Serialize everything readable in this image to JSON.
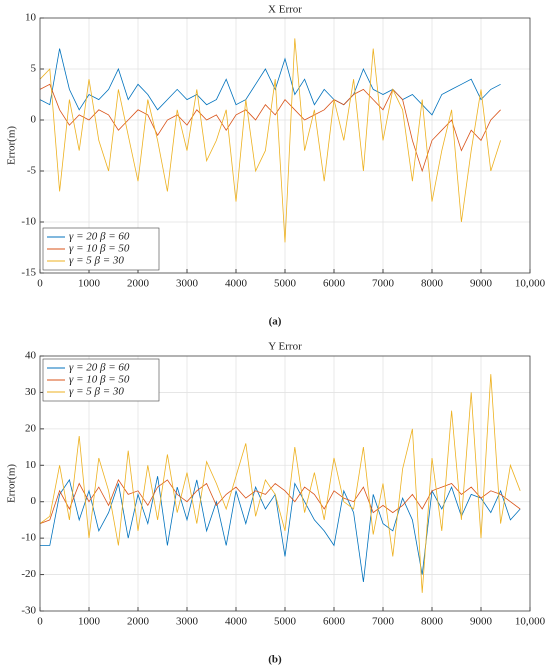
{
  "chart_data": [
    {
      "type": "line",
      "title": "X Error",
      "ylabel": "Error(m)",
      "caption": "(a)",
      "x": [
        0,
        200,
        400,
        600,
        800,
        1000,
        1200,
        1400,
        1600,
        1800,
        2000,
        2200,
        2400,
        2600,
        2800,
        3000,
        3200,
        3400,
        3600,
        3800,
        4000,
        4200,
        4400,
        4600,
        4800,
        5000,
        5200,
        5400,
        5600,
        5800,
        6000,
        6200,
        6400,
        6600,
        6800,
        7000,
        7200,
        7400,
        7600,
        7800,
        8000,
        8200,
        8400,
        8600,
        8800,
        9000,
        9200,
        9400
      ],
      "xlim": [
        0,
        10000
      ],
      "xticks": [
        0,
        1000,
        2000,
        3000,
        4000,
        5000,
        6000,
        7000,
        8000,
        9000,
        {
          "value": 10000,
          "label": "10,000"
        }
      ],
      "ylim": [
        -15,
        10
      ],
      "yticks": [
        -15,
        -10,
        -5,
        0,
        5,
        10
      ],
      "grid": true,
      "legend": "lower left",
      "series": [
        {
          "name": "γ = 20  β = 60",
          "color": "#0072bd",
          "values": [
            2,
            1.5,
            7,
            3,
            1,
            2.5,
            2,
            3,
            5,
            2,
            3.5,
            2.5,
            1,
            2,
            3,
            2,
            2.5,
            1.5,
            2,
            4,
            1.5,
            2,
            3.5,
            5,
            3,
            6,
            2.5,
            4,
            1.5,
            3,
            2,
            1.5,
            2.5,
            5,
            3,
            2.5,
            3,
            2,
            2.5,
            1.5,
            0.5,
            2.5,
            3,
            3.5,
            4,
            2,
            3,
            3.5
          ]
        },
        {
          "name": "γ = 10  β = 50",
          "color": "#d95319",
          "values": [
            3,
            3.5,
            1,
            -0.5,
            0.5,
            0,
            1,
            0.5,
            -1,
            0,
            1,
            0.5,
            -1.5,
            0,
            0.5,
            -0.5,
            1,
            0,
            0.5,
            -1,
            0.5,
            1,
            0,
            1.5,
            0.5,
            2,
            1,
            0,
            0.5,
            1,
            2,
            1.5,
            2.5,
            3,
            2,
            1,
            3,
            2,
            -2,
            -5,
            -2,
            -1,
            0,
            -3,
            -1,
            -2,
            0,
            1
          ]
        },
        {
          "name": "γ = 5  β = 30",
          "color": "#edb120",
          "values": [
            4,
            5,
            -7,
            2,
            -3,
            4,
            -2,
            -5,
            3,
            -1.5,
            -6,
            2,
            -2,
            -7,
            1,
            -3,
            3,
            -4,
            -2,
            1,
            -8,
            2,
            -5,
            -3,
            4,
            -12,
            8,
            -3,
            1,
            -6,
            2,
            -2,
            4,
            -5,
            7,
            -2,
            3,
            1,
            -6,
            2,
            -8,
            -3,
            1,
            -10,
            -3,
            3,
            -5,
            -2
          ]
        }
      ]
    },
    {
      "type": "line",
      "title": "Y Error",
      "ylabel": "Error(m)",
      "caption": "(b)",
      "x": [
        0,
        200,
        400,
        600,
        800,
        1000,
        1200,
        1400,
        1600,
        1800,
        2000,
        2200,
        2400,
        2600,
        2800,
        3000,
        3200,
        3400,
        3600,
        3800,
        4000,
        4200,
        4400,
        4600,
        4800,
        5000,
        5200,
        5400,
        5600,
        5800,
        6000,
        6200,
        6400,
        6600,
        6800,
        7000,
        7200,
        7400,
        7600,
        7800,
        8000,
        8200,
        8400,
        8600,
        8800,
        9000,
        9200,
        9400,
        9600,
        9800
      ],
      "xlim": [
        0,
        10000
      ],
      "xticks": [
        0,
        1000,
        2000,
        3000,
        4000,
        5000,
        6000,
        7000,
        8000,
        9000,
        {
          "value": 10000,
          "label": "10,000"
        }
      ],
      "ylim": [
        -30,
        40
      ],
      "yticks": [
        -30,
        -20,
        -10,
        0,
        10,
        20,
        30,
        40
      ],
      "grid": true,
      "legend": "upper left",
      "series": [
        {
          "name": "γ = 20  β = 60",
          "color": "#0072bd",
          "values": [
            -12,
            -12,
            2,
            6,
            -5,
            3,
            -8,
            -3,
            5,
            -10,
            2,
            -6,
            7,
            -12,
            4,
            -5,
            6,
            -8,
            0,
            -12,
            3,
            -6,
            4,
            -2,
            2,
            -15,
            5,
            0,
            -5,
            -8,
            -12,
            3,
            -3,
            -22,
            2,
            -6,
            -8,
            1,
            -5,
            -20,
            3,
            -2,
            4,
            -4,
            2,
            1,
            -3,
            3,
            -5,
            -2
          ]
        },
        {
          "name": "γ = 10  β = 50",
          "color": "#d95319",
          "values": [
            -6,
            -5,
            3,
            -2,
            5,
            0,
            4,
            -1,
            6,
            2,
            3,
            -1,
            4,
            6,
            2,
            0,
            3,
            5,
            -1,
            2,
            4,
            1,
            3,
            2,
            5,
            3,
            0,
            4,
            2,
            -2,
            3,
            1,
            0,
            4,
            -3,
            -1,
            -3,
            -1,
            2,
            -2,
            3,
            4,
            5,
            2,
            4,
            1,
            3,
            2,
            0,
            -2
          ]
        },
        {
          "name": "γ =  5   β = 30",
          "color": "#edb120",
          "values": [
            -6,
            -4,
            10,
            -5,
            18,
            -10,
            12,
            3,
            -12,
            14,
            -8,
            10,
            -5,
            13,
            -3,
            8,
            -6,
            11,
            5,
            -2,
            7,
            16,
            -4,
            6,
            2,
            -8,
            15,
            -3,
            8,
            -5,
            12,
            0,
            -2,
            15,
            -9,
            5,
            -15,
            9,
            20,
            -25,
            12,
            -8,
            25,
            -5,
            30,
            -10,
            35,
            -6,
            10,
            3
          ]
        }
      ]
    }
  ]
}
